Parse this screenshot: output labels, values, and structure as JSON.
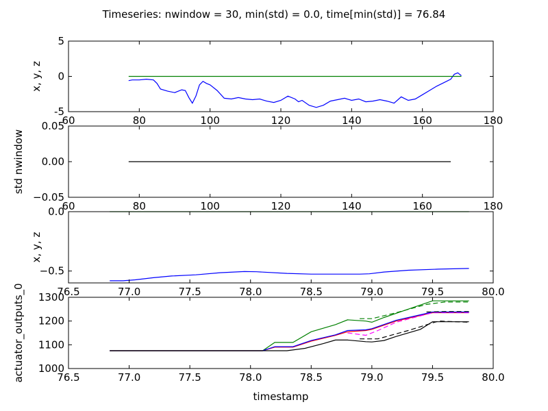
{
  "figure": {
    "suptitle": "Timeseries: nwindow = 30, min(std) = 0.0, time[min(std)] = 76.84"
  },
  "chart_data": [
    {
      "type": "line",
      "title": "",
      "xlabel": "",
      "ylabel": "x, y, z",
      "xlim": [
        60,
        180
      ],
      "ylim": [
        -5,
        5
      ],
      "xticks": [
        60,
        80,
        100,
        120,
        140,
        160,
        180
      ],
      "yticks": [
        -5,
        0,
        5
      ],
      "grid": false,
      "series": [
        {
          "color": "#0000ff",
          "dashed": false,
          "x": [
            77,
            78,
            80,
            82,
            84,
            85,
            86,
            88,
            90,
            92,
            93,
            94,
            95,
            96,
            97,
            98,
            99,
            100,
            102,
            104,
            106,
            108,
            110,
            112,
            114,
            116,
            118,
            120,
            122,
            124,
            125,
            126,
            128,
            130,
            132,
            134,
            136,
            138,
            140,
            142,
            144,
            146,
            148,
            150,
            152,
            154,
            156,
            158,
            160,
            162,
            164,
            166,
            168,
            169,
            170,
            171
          ],
          "y": [
            -0.6,
            -0.5,
            -0.5,
            -0.4,
            -0.5,
            -1.0,
            -1.8,
            -2.1,
            -2.3,
            -1.9,
            -2.0,
            -3.0,
            -3.8,
            -2.8,
            -1.2,
            -0.7,
            -1.0,
            -1.2,
            -2.0,
            -3.1,
            -3.2,
            -3.0,
            -3.2,
            -3.3,
            -3.2,
            -3.5,
            -3.7,
            -3.4,
            -2.8,
            -3.2,
            -3.6,
            -3.4,
            -4.1,
            -4.4,
            -4.1,
            -3.5,
            -3.3,
            -3.1,
            -3.4,
            -3.2,
            -3.6,
            -3.5,
            -3.3,
            -3.5,
            -3.8,
            -2.9,
            -3.4,
            -3.2,
            -2.6,
            -2.0,
            -1.4,
            -0.9,
            -0.4,
            0.3,
            0.5,
            0.1
          ]
        },
        {
          "color": "#008000",
          "dashed": false,
          "x": [
            77,
            171
          ],
          "y": [
            0,
            0
          ]
        }
      ]
    },
    {
      "type": "line",
      "title": "",
      "xlabel": "",
      "ylabel": "std nwindow",
      "xlim": [
        60,
        180
      ],
      "ylim": [
        -0.05,
        0.05
      ],
      "xticks": [
        60,
        80,
        100,
        120,
        140,
        160,
        180
      ],
      "yticks": [
        -0.05,
        0.0,
        0.05
      ],
      "ytick_labels": [
        "−0.05",
        "0.00",
        "0.05"
      ],
      "grid": false,
      "series": [
        {
          "color": "#000000",
          "dashed": false,
          "x": [
            77,
            168
          ],
          "y": [
            0,
            0
          ]
        }
      ]
    },
    {
      "type": "line",
      "title": "",
      "xlabel": "",
      "ylabel": "x, y, z",
      "xlim": [
        76.5,
        80.0
      ],
      "ylim": [
        -0.6,
        0.0
      ],
      "xticks": [
        76.5,
        77.0,
        77.5,
        78.0,
        78.5,
        79.0,
        79.5,
        80.0
      ],
      "yticks": [
        -0.5,
        0.0
      ],
      "ytick_labels": [
        "−0.5",
        "0.0"
      ],
      "grid": false,
      "series": [
        {
          "color": "#0000ff",
          "dashed": false,
          "x": [
            76.84,
            76.95,
            77.05,
            77.2,
            77.35,
            77.55,
            77.75,
            77.95,
            78.05,
            78.3,
            78.5,
            78.7,
            78.9,
            78.98,
            79.1,
            79.3,
            79.55,
            79.8
          ],
          "y": [
            -0.582,
            -0.582,
            -0.574,
            -0.556,
            -0.542,
            -0.532,
            -0.514,
            -0.504,
            -0.506,
            -0.52,
            -0.526,
            -0.526,
            -0.526,
            -0.523,
            -0.508,
            -0.493,
            -0.484,
            -0.478
          ]
        },
        {
          "color": "#008000",
          "dashed": false,
          "x": [
            76.84,
            79.8
          ],
          "y": [
            0.0,
            0.0
          ]
        }
      ]
    },
    {
      "type": "line",
      "title": "",
      "xlabel": "timestamp",
      "ylabel": "actuator_outputs_0",
      "xlim": [
        76.5,
        80.0
      ],
      "ylim": [
        1000,
        1300
      ],
      "xticks": [
        76.5,
        77.0,
        77.5,
        78.0,
        78.5,
        79.0,
        79.5,
        80.0
      ],
      "yticks": [
        1000,
        1100,
        1200,
        1300
      ],
      "grid": false,
      "series": [
        {
          "color": "#008000",
          "dashed": false,
          "x": [
            76.84,
            78.1,
            78.2,
            78.35,
            78.5,
            78.7,
            78.8,
            78.95,
            79.0,
            79.1,
            79.3,
            79.5,
            79.8
          ],
          "y": [
            1075,
            1075,
            1110,
            1110,
            1155,
            1185,
            1205,
            1200,
            1195,
            1215,
            1250,
            1285,
            1285
          ]
        },
        {
          "color": "#008000",
          "dashed": true,
          "x": [
            78.9,
            79.0,
            79.2,
            79.45,
            79.6,
            79.8
          ],
          "y": [
            1210,
            1210,
            1235,
            1270,
            1280,
            1280
          ]
        },
        {
          "color": "#ff0000",
          "dashed": false,
          "x": [
            76.84,
            78.1,
            78.2,
            78.35,
            78.5,
            78.7,
            78.8,
            78.95,
            79.0,
            79.2,
            79.5,
            79.8
          ],
          "y": [
            1075,
            1075,
            1090,
            1090,
            1115,
            1140,
            1155,
            1160,
            1165,
            1200,
            1235,
            1235
          ]
        },
        {
          "color": "#ff00ff",
          "dashed": true,
          "x": [
            78.8,
            78.95,
            79.05,
            79.2,
            79.5,
            79.8
          ],
          "y": [
            1150,
            1140,
            1160,
            1195,
            1235,
            1235
          ]
        },
        {
          "color": "#0000ff",
          "dashed": false,
          "x": [
            76.84,
            78.1,
            78.2,
            78.35,
            78.5,
            78.7,
            78.8,
            78.95,
            79.0,
            79.2,
            79.5,
            79.8
          ],
          "y": [
            1075,
            1075,
            1092,
            1092,
            1118,
            1142,
            1160,
            1163,
            1168,
            1203,
            1238,
            1238
          ]
        },
        {
          "color": "#000000",
          "dashed": true,
          "x": [
            78.9,
            79.05,
            79.3,
            79.55,
            79.8
          ],
          "y": [
            1125,
            1125,
            1160,
            1200,
            1195
          ]
        },
        {
          "color": "#000000",
          "dashed": true,
          "x": [
            79.45,
            79.6,
            79.8
          ],
          "y": [
            1238,
            1240,
            1240
          ]
        },
        {
          "color": "#000000",
          "dashed": false,
          "x": [
            76.84,
            78.3,
            78.45,
            78.6,
            78.7,
            78.8,
            78.95,
            79.0,
            79.1,
            79.2,
            79.4,
            79.5,
            79.8
          ],
          "y": [
            1075,
            1075,
            1085,
            1105,
            1120,
            1120,
            1113,
            1112,
            1118,
            1135,
            1165,
            1197,
            1197
          ]
        }
      ]
    }
  ]
}
